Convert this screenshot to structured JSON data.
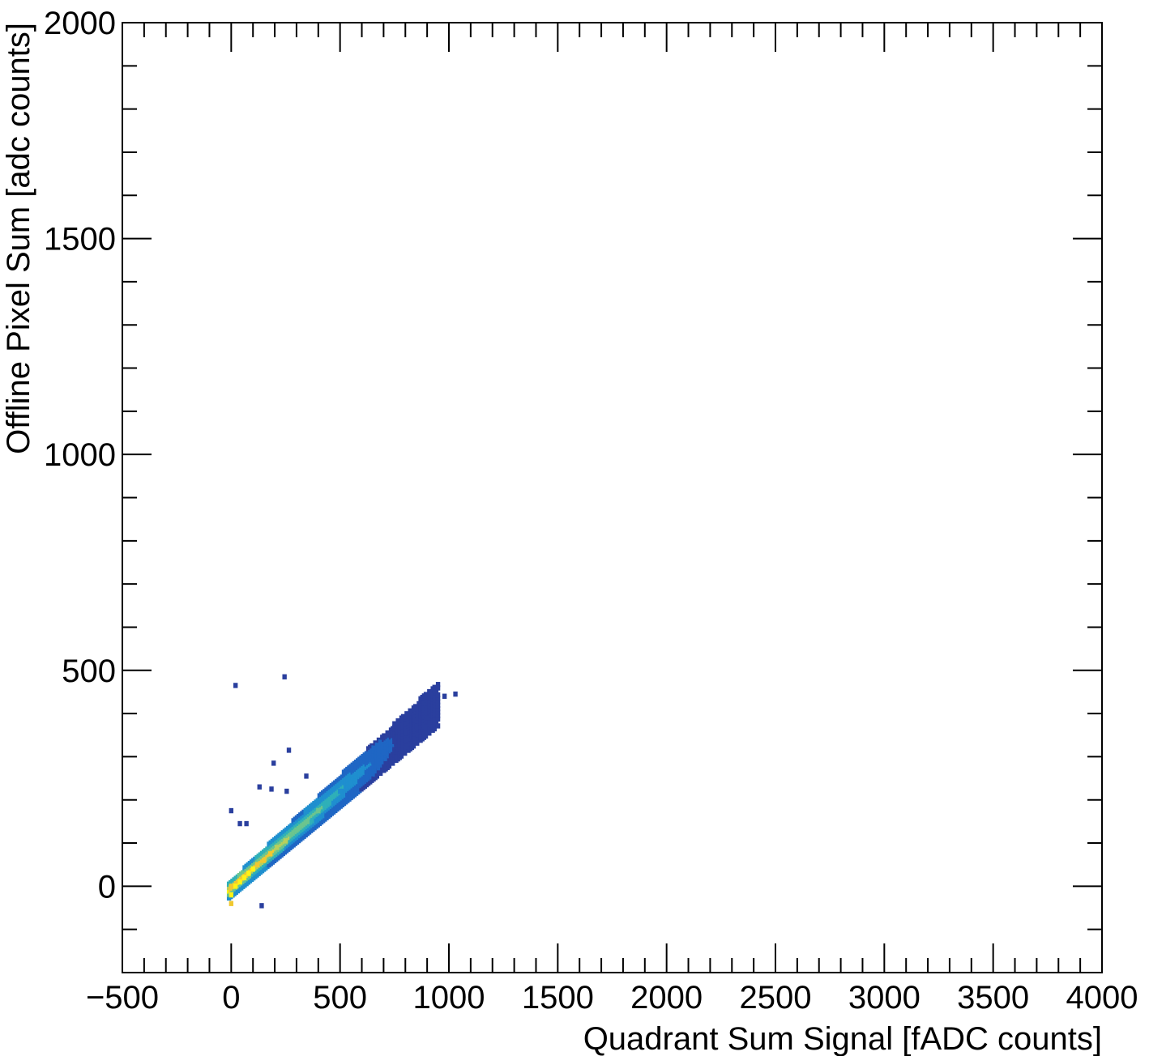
{
  "chart_data": {
    "type": "heatmap",
    "title": "",
    "xlabel": "Quadrant Sum Signal [fADC counts]",
    "ylabel": "Offline Pixel Sum [adc counts]",
    "xlim": [
      -500,
      4000
    ],
    "ylim": [
      -200,
      2000
    ],
    "x_ticks": [
      -500,
      0,
      500,
      1000,
      1500,
      2000,
      2500,
      3000,
      3500,
      4000
    ],
    "x_tick_labels": [
      "−500",
      "0",
      "500",
      "1000",
      "1500",
      "2000",
      "2500",
      "3000",
      "3500",
      "4000"
    ],
    "y_ticks": [
      0,
      500,
      1000,
      1500,
      2000
    ],
    "y_tick_labels": [
      "0",
      "500",
      "1000",
      "1500",
      "2000"
    ],
    "grid": false,
    "colormap": [
      "#2a3f9e",
      "#1f66c4",
      "#1f8fcf",
      "#2fb0b8",
      "#6cc58e",
      "#b8cf5c",
      "#f0c830",
      "#fff215"
    ],
    "trend": {
      "slope": 0.45,
      "intercept": -5
    },
    "cells": [
      {
        "x": 0,
        "y": -20,
        "v": 1.0
      },
      {
        "x": 0,
        "y": -40,
        "v": 0.9
      },
      {
        "x": 0,
        "y": 0,
        "v": 0.9
      },
      {
        "x": 20,
        "y": 0,
        "v": 0.95
      },
      {
        "x": 40,
        "y": 10,
        "v": 0.95
      },
      {
        "x": 60,
        "y": 20,
        "v": 0.95
      },
      {
        "x": 80,
        "y": 30,
        "v": 0.95
      },
      {
        "x": 100,
        "y": 40,
        "v": 0.95
      },
      {
        "x": 120,
        "y": 50,
        "v": 0.9
      },
      {
        "x": 150,
        "y": 60,
        "v": 0.85
      },
      {
        "x": 180,
        "y": 75,
        "v": 0.8
      },
      {
        "x": 210,
        "y": 90,
        "v": 0.75
      },
      {
        "x": 250,
        "y": 105,
        "v": 0.7
      },
      {
        "x": 300,
        "y": 130,
        "v": 0.62
      },
      {
        "x": 350,
        "y": 150,
        "v": 0.55
      },
      {
        "x": 400,
        "y": 175,
        "v": 0.5
      },
      {
        "x": 450,
        "y": 195,
        "v": 0.42
      },
      {
        "x": 500,
        "y": 220,
        "v": 0.35
      },
      {
        "x": 550,
        "y": 240,
        "v": 0.28
      },
      {
        "x": 600,
        "y": 265,
        "v": 0.22
      },
      {
        "x": 650,
        "y": 290,
        "v": 0.16
      },
      {
        "x": 700,
        "y": 310,
        "v": 0.1
      },
      {
        "x": 750,
        "y": 335,
        "v": 0.05
      },
      {
        "x": 800,
        "y": 355,
        "v": 0.02
      },
      {
        "x": 850,
        "y": 370,
        "v": 0.02
      },
      {
        "x": 900,
        "y": 390,
        "v": 0.02
      },
      {
        "x": 1030,
        "y": 445,
        "v": 0.0
      },
      {
        "x": 20,
        "y": 465,
        "v": 0.0
      },
      {
        "x": 245,
        "y": 485,
        "v": 0.0
      },
      {
        "x": 265,
        "y": 315,
        "v": 0.0
      },
      {
        "x": 195,
        "y": 285,
        "v": 0.0
      },
      {
        "x": 345,
        "y": 255,
        "v": 0.0
      },
      {
        "x": 130,
        "y": 230,
        "v": 0.0
      },
      {
        "x": 185,
        "y": 225,
        "v": 0.0
      },
      {
        "x": 255,
        "y": 220,
        "v": 0.0
      },
      {
        "x": 0,
        "y": 175,
        "v": 0.0
      },
      {
        "x": 140,
        "y": -45,
        "v": 0.0
      },
      {
        "x": 40,
        "y": 145,
        "v": 0.0
      },
      {
        "x": 70,
        "y": 145,
        "v": 0.0
      },
      {
        "x": 980,
        "y": 440,
        "v": 0.0
      }
    ]
  }
}
